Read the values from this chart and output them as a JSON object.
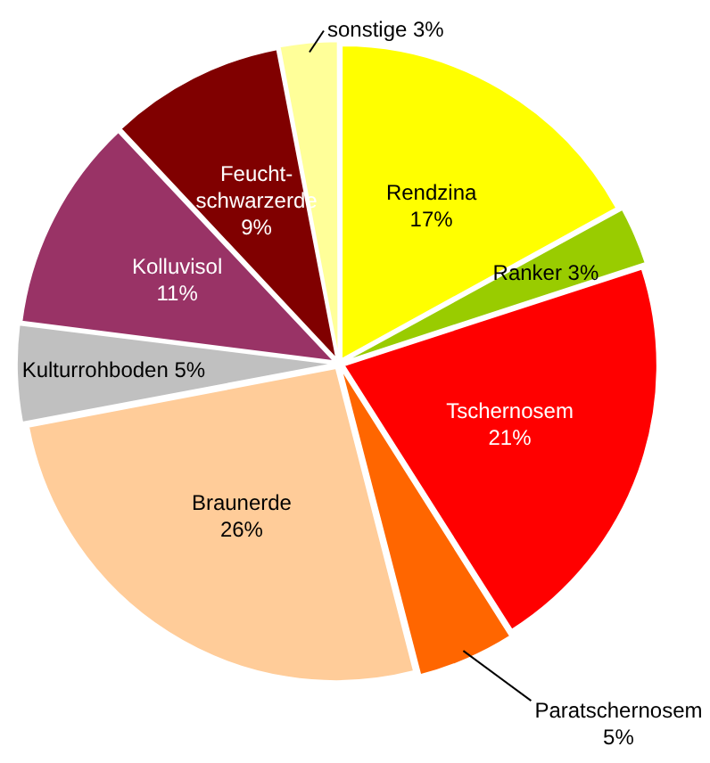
{
  "chart_data": {
    "type": "pie",
    "categories": [
      "Rendzina",
      "Ranker",
      "Tschernosem",
      "Paratschernosem",
      "Braunerde",
      "Kulturrohboden",
      "Kolluvisol",
      "Feucht-\nschwarzerde",
      "sonstige"
    ],
    "values": [
      17,
      3,
      21,
      5,
      26,
      5,
      11,
      9,
      3
    ],
    "value_labels": [
      "17%",
      "3%",
      "21%",
      "5%",
      "26%",
      "5%",
      "11%",
      "9%",
      "3%"
    ],
    "colors": [
      "#ffff00",
      "#99cc00",
      "#ff0000",
      "#ff6600",
      "#ffcc99",
      "#c0c0c0",
      "#993366",
      "#800000",
      "#ffff99"
    ],
    "legend": false
  }
}
